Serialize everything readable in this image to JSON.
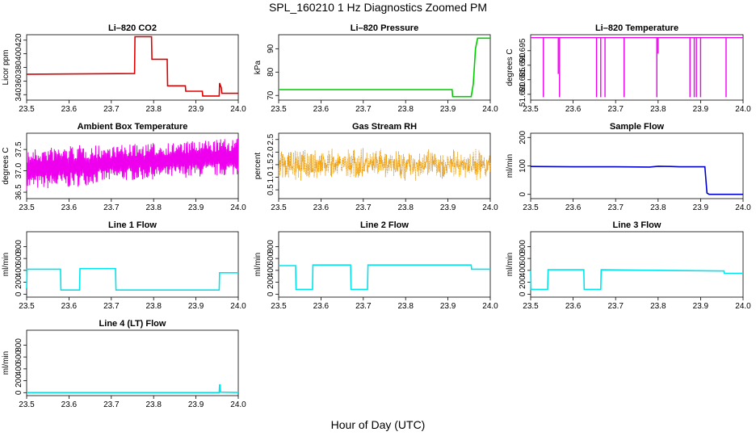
{
  "page": {
    "title": "SPL_160210  1 Hz Diagnostics Zoomed PM",
    "xlabel": "Hour of Day (UTC)"
  },
  "chart_data": [
    {
      "type": "line",
      "title": "Li–820 CO2",
      "xlabel": "",
      "ylabel": "Licor ppm",
      "color": "#dd0000",
      "xlim": [
        23.5,
        24.0
      ],
      "ylim": [
        332,
        428
      ],
      "xticks": [
        "23.5",
        "23.6",
        "23.7",
        "23.8",
        "23.9",
        "24.0"
      ],
      "yticks": [
        "340",
        "360",
        "380",
        "400",
        "420"
      ],
      "series": [
        {
          "x": [
            23.5,
            23.755,
            23.756,
            23.795,
            23.796,
            23.832,
            23.833,
            23.875,
            23.876,
            23.915,
            23.916,
            23.955,
            23.956,
            23.96,
            23.961,
            24.0
          ],
          "y": [
            370,
            371,
            425,
            425,
            392,
            392,
            353,
            353,
            345,
            345,
            338,
            338,
            357,
            350,
            342,
            342
          ]
        }
      ]
    },
    {
      "type": "line",
      "title": "Li–820 Pressure",
      "xlabel": "",
      "ylabel": "kPa",
      "color": "#00cc00",
      "xlim": [
        23.5,
        24.0
      ],
      "ylim": [
        68,
        96
      ],
      "xticks": [
        "23.5",
        "23.6",
        "23.7",
        "23.8",
        "23.9",
        "24.0"
      ],
      "yticks": [
        "70",
        "80",
        "90"
      ],
      "series": [
        {
          "x": [
            23.5,
            23.91,
            23.911,
            23.955,
            23.96,
            23.965,
            23.97,
            24.0
          ],
          "y": [
            72.5,
            72.5,
            69.5,
            69.5,
            75,
            90,
            94.5,
            94.5
          ]
        }
      ]
    },
    {
      "type": "line",
      "title": "Li–820 Temperature",
      "xlabel": "",
      "ylabel": "degrees C",
      "color": "#ee00ee",
      "xlim": [
        23.5,
        24.0
      ],
      "ylim": [
        51.678,
        51.7005
      ],
      "xticks": [
        "23.5",
        "23.6",
        "23.7",
        "23.8",
        "23.9",
        "24.0"
      ],
      "yticks": [
        "51.680",
        "51.685",
        "51.690",
        "51.695"
      ],
      "baseline": 51.6995,
      "dips": [
        [
          23.53,
          51.679
        ],
        [
          23.565,
          51.687
        ],
        [
          23.568,
          51.679
        ],
        [
          23.655,
          51.679
        ],
        [
          23.665,
          51.679
        ],
        [
          23.675,
          51.679
        ],
        [
          23.72,
          51.679
        ],
        [
          23.797,
          51.679
        ],
        [
          23.8,
          51.694
        ],
        [
          23.875,
          51.679
        ],
        [
          23.885,
          51.679
        ],
        [
          23.89,
          51.679
        ],
        [
          23.9,
          51.679
        ],
        [
          23.96,
          51.679
        ]
      ]
    },
    {
      "type": "line",
      "title": "Ambient Box Temperature",
      "xlabel": "",
      "ylabel": "degrees C",
      "color": "#ee00ee",
      "xlim": [
        23.5,
        24.0
      ],
      "ylim": [
        36.35,
        37.88
      ],
      "xticks": [
        "23.5",
        "23.6",
        "23.7",
        "23.8",
        "23.9",
        "24.0"
      ],
      "yticks": [
        "36.5",
        "37.0",
        "37.5"
      ],
      "band": {
        "x": [
          23.5,
          23.6,
          23.7,
          23.8,
          23.9,
          24.0
        ],
        "low": [
          36.55,
          36.6,
          36.75,
          36.8,
          36.85,
          36.9
        ],
        "high": [
          37.5,
          37.6,
          37.6,
          37.65,
          37.7,
          37.78
        ]
      }
    },
    {
      "type": "scatter",
      "title": "Gas Stream RH",
      "xlabel": "",
      "ylabel": "percent",
      "color": "#ee9900",
      "xlim": [
        23.5,
        24.0
      ],
      "ylim": [
        0.15,
        2.75
      ],
      "xticks": [
        "23.5",
        "23.6",
        "23.7",
        "23.8",
        "23.9",
        "24.0"
      ],
      "yticks": [
        "0.5",
        "1.0",
        "1.5",
        "2.0",
        "2.5"
      ],
      "band": {
        "x": [
          23.5,
          24.0
        ],
        "center": [
          1.5,
          1.5
        ],
        "spread": 0.55
      }
    },
    {
      "type": "line",
      "title": "Sample Flow",
      "xlabel": "",
      "ylabel": "ml/min",
      "color": "#0000cc",
      "xlim": [
        23.5,
        24.0
      ],
      "ylim": [
        -15,
        215
      ],
      "xticks": [
        "23.5",
        "23.6",
        "23.7",
        "23.8",
        "23.9",
        "24.0"
      ],
      "yticks": [
        "0",
        "100",
        "200"
      ],
      "series": [
        {
          "x": [
            23.5,
            23.6,
            23.7,
            23.78,
            23.8,
            23.83,
            23.85,
            23.91,
            23.915,
            23.92,
            24.0
          ],
          "y": [
            98,
            97,
            97,
            96,
            99,
            98,
            97,
            97,
            5,
            0,
            0
          ]
        }
      ]
    },
    {
      "type": "line",
      "title": "Line 1 Flow",
      "xlabel": "",
      "ylabel": "ml/min",
      "color": "#00e5ee",
      "xlim": [
        23.5,
        24.0
      ],
      "ylim": [
        -50,
        1050
      ],
      "xticks": [
        "23.5",
        "23.6",
        "23.7",
        "23.8",
        "23.9",
        "24.0"
      ],
      "yticks": [
        "0",
        "200",
        "400",
        "600",
        "800"
      ],
      "series": [
        {
          "x": [
            23.5,
            23.501,
            23.58,
            23.581,
            23.625,
            23.626,
            23.71,
            23.711,
            23.955,
            23.956,
            24.0
          ],
          "y": [
            100,
            420,
            420,
            70,
            70,
            430,
            430,
            70,
            70,
            360,
            360
          ]
        }
      ]
    },
    {
      "type": "line",
      "title": "Line 2 Flow",
      "xlabel": "",
      "ylabel": "ml/min",
      "color": "#00e5ee",
      "xlim": [
        23.5,
        24.0
      ],
      "ylim": [
        -50,
        1050
      ],
      "xticks": [
        "23.5",
        "23.6",
        "23.7",
        "23.8",
        "23.9",
        "24.0"
      ],
      "yticks": [
        "0",
        "200",
        "400",
        "600",
        "800"
      ],
      "series": [
        {
          "x": [
            23.5,
            23.54,
            23.541,
            23.58,
            23.581,
            23.67,
            23.671,
            23.71,
            23.711,
            23.955,
            23.956,
            24.0
          ],
          "y": [
            480,
            480,
            80,
            80,
            490,
            490,
            80,
            80,
            490,
            490,
            420,
            420
          ]
        }
      ]
    },
    {
      "type": "line",
      "title": "Line 3 Flow",
      "xlabel": "",
      "ylabel": "ml/min",
      "color": "#00e5ee",
      "xlim": [
        23.5,
        24.0
      ],
      "ylim": [
        -50,
        1050
      ],
      "xticks": [
        "23.5",
        "23.6",
        "23.7",
        "23.8",
        "23.9",
        "24.0"
      ],
      "yticks": [
        "0",
        "200",
        "400",
        "600",
        "800"
      ],
      "series": [
        {
          "x": [
            23.5,
            23.501,
            23.54,
            23.541,
            23.625,
            23.626,
            23.665,
            23.666,
            23.955,
            23.956,
            24.0
          ],
          "y": [
            400,
            80,
            80,
            410,
            410,
            80,
            80,
            410,
            390,
            350,
            350
          ]
        }
      ]
    },
    {
      "type": "line",
      "title": "Line 4 (LT) Flow",
      "xlabel": "",
      "ylabel": "ml/min",
      "color": "#00e5ee",
      "xlim": [
        23.5,
        24.0
      ],
      "ylim": [
        -50,
        1050
      ],
      "xticks": [
        "23.5",
        "23.6",
        "23.7",
        "23.8",
        "23.9",
        "24.0"
      ],
      "yticks": [
        "0",
        "200",
        "400",
        "600",
        "800"
      ],
      "series": [
        {
          "x": [
            23.5,
            23.955,
            23.956,
            23.957,
            23.958,
            24.0
          ],
          "y": [
            2,
            2,
            130,
            130,
            8,
            3
          ]
        }
      ]
    }
  ]
}
